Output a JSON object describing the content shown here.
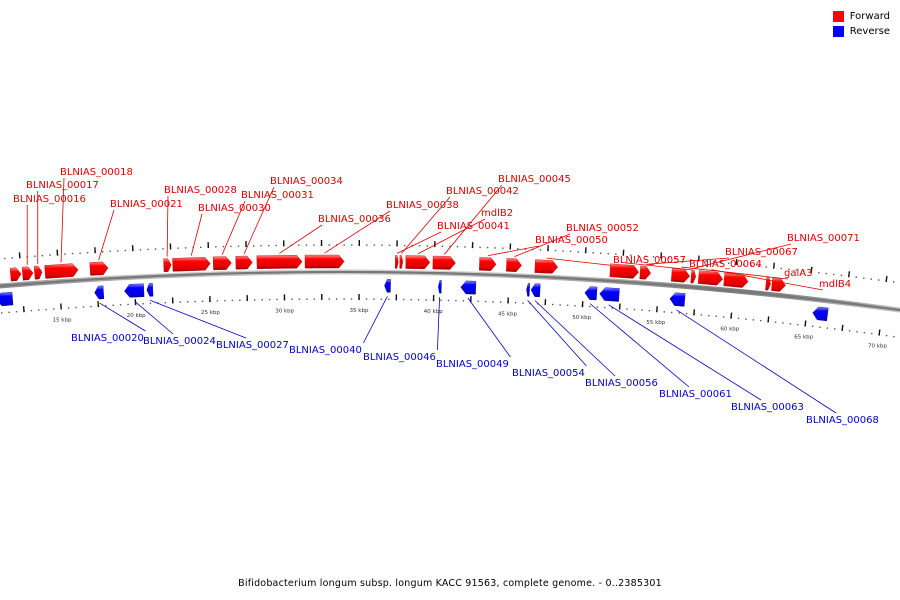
{
  "legend": {
    "items": [
      {
        "label": "Forward",
        "color": "#ff0000"
      },
      {
        "label": "Reverse",
        "color": "#0000ff"
      }
    ]
  },
  "caption": "Bifidobacterium longum subsp. longum KACC 91563, complete genome. - 0..2385301",
  "colors": {
    "forward": "#ff0000",
    "forward_dark": "#a00000",
    "forward_light": "#ff8080",
    "reverse": "#0000ff",
    "reverse_dark": "#00009a",
    "reverse_light": "#8080ff",
    "forward_label": "#dd0000",
    "reverse_label": "#0000cc",
    "backbone": "#888888"
  },
  "genome": {
    "visible_range_kbp": [
      10.5,
      71.5
    ],
    "scale_ticks_kbp": [
      15,
      20,
      25,
      30,
      35,
      40,
      45,
      50,
      55,
      60,
      65,
      70
    ],
    "scale_tick_labels": [
      "15 kbp",
      "20 kbp",
      "25 kbp",
      "30 kbp",
      "35 kbp",
      "40 kbp",
      "45 kbp",
      "50 kbp",
      "55 kbp",
      "60 kbp",
      "65 kbp",
      "70 kbp"
    ]
  },
  "forward_genes": [
    {
      "start": 10.3,
      "end": 10.6,
      "label": ""
    },
    {
      "start": 11.8,
      "end": 12.5,
      "label": ""
    },
    {
      "start": 12.6,
      "end": 13.3,
      "label": "BLNIAS_00016"
    },
    {
      "start": 13.4,
      "end": 13.9,
      "label": "BLNIAS_00017"
    },
    {
      "start": 14.1,
      "end": 16.3,
      "label": "BLNIAS_00018"
    },
    {
      "start": 17.1,
      "end": 18.3,
      "label": "BLNIAS_00021"
    },
    {
      "start": 22.0,
      "end": 22.5,
      "label": "BLNIAS_00028"
    },
    {
      "start": 22.6,
      "end": 25.1,
      "label": "BLNIAS_00030"
    },
    {
      "start": 25.3,
      "end": 26.5,
      "label": "BLNIAS_00031"
    },
    {
      "start": 26.8,
      "end": 27.9,
      "label": "BLNIAS_00034"
    },
    {
      "start": 28.2,
      "end": 31.2,
      "label": "BLNIAS_00036"
    },
    {
      "start": 31.4,
      "end": 34.0,
      "label": "BLNIAS_00038"
    },
    {
      "start": 37.4,
      "end": 37.6,
      "label": "BLNIAS_00041"
    },
    {
      "start": 37.7,
      "end": 37.9,
      "label": "BLNIAS_00042"
    },
    {
      "start": 38.1,
      "end": 39.7,
      "label": "mdlB2"
    },
    {
      "start": 39.9,
      "end": 41.4,
      "label": "BLNIAS_00045"
    },
    {
      "start": 43.0,
      "end": 44.1,
      "label": "BLNIAS_00050"
    },
    {
      "start": 44.8,
      "end": 45.8,
      "label": "BLNIAS_00052"
    },
    {
      "start": 46.7,
      "end": 48.2,
      "label": "BLNIAS_00057"
    },
    {
      "start": 51.7,
      "end": 53.6,
      "label": "BLNIAS_00064"
    },
    {
      "start": 53.7,
      "end": 54.4,
      "label": "BLNIAS_00067"
    },
    {
      "start": 55.8,
      "end": 57.0,
      "label": "galA3"
    },
    {
      "start": 57.1,
      "end": 57.4,
      "label": "BLNIAS_00071"
    },
    {
      "start": 57.6,
      "end": 59.2,
      "label": "mdlB4"
    },
    {
      "start": 59.3,
      "end": 60.9,
      "label": ""
    },
    {
      "start": 62.1,
      "end": 62.4,
      "label": ""
    },
    {
      "start": 62.5,
      "end": 63.4,
      "label": ""
    }
  ],
  "reverse_genes": [
    {
      "start": 10.7,
      "end": 11.8,
      "label": ""
    },
    {
      "start": 17.3,
      "end": 17.9,
      "label": "BLNIAS_00020"
    },
    {
      "start": 19.3,
      "end": 20.6,
      "label": "BLNIAS_00024"
    },
    {
      "start": 20.8,
      "end": 21.2,
      "label": "BLNIAS_00027"
    },
    {
      "start": 36.7,
      "end": 37.1,
      "label": "BLNIAS_00040"
    },
    {
      "start": 40.3,
      "end": 40.5,
      "label": "BLNIAS_00046"
    },
    {
      "start": 41.8,
      "end": 42.8,
      "label": "BLNIAS_00049"
    },
    {
      "start": 46.2,
      "end": 46.4,
      "label": "BLNIAS_00054"
    },
    {
      "start": 46.5,
      "end": 47.1,
      "label": "BLNIAS_00056"
    },
    {
      "start": 50.1,
      "end": 50.9,
      "label": "BLNIAS_00061"
    },
    {
      "start": 51.1,
      "end": 52.4,
      "label": "BLNIAS_00063"
    },
    {
      "start": 55.8,
      "end": 56.8,
      "label": "BLNIAS_00068"
    },
    {
      "start": 65.4,
      "end": 66.4,
      "label": ""
    }
  ],
  "forward_label_positions": {
    "BLNIAS_00016": [
      13,
      202
    ],
    "BLNIAS_00017": [
      26,
      188
    ],
    "BLNIAS_00018": [
      60,
      175
    ],
    "BLNIAS_00021": [
      110,
      207
    ],
    "BLNIAS_00028": [
      164,
      193
    ],
    "BLNIAS_00030": [
      198,
      211
    ],
    "BLNIAS_00031": [
      241,
      198
    ],
    "BLNIAS_00034": [
      270,
      184
    ],
    "BLNIAS_00036": [
      318,
      222
    ],
    "BLNIAS_00038": [
      386,
      208
    ],
    "BLNIAS_00041": [
      437,
      229
    ],
    "BLNIAS_00042": [
      446,
      194
    ],
    "mdlB2": [
      481,
      216
    ],
    "BLNIAS_00045": [
      498,
      182
    ],
    "BLNIAS_00050": [
      535,
      243
    ],
    "BLNIAS_00052": [
      566,
      231
    ],
    "BLNIAS_00057": [
      613,
      263
    ],
    "BLNIAS_00064": [
      689,
      267
    ],
    "BLNIAS_00067": [
      725,
      255
    ],
    "galA3": [
      784,
      276
    ],
    "BLNIAS_00071": [
      787,
      241
    ],
    "mdlB4": [
      819,
      287
    ]
  },
  "reverse_label_positions": {
    "BLNIAS_00020": [
      71,
      341
    ],
    "BLNIAS_00024": [
      143,
      344
    ],
    "BLNIAS_00027": [
      216,
      348
    ],
    "BLNIAS_00040": [
      289,
      353
    ],
    "BLNIAS_00046": [
      363,
      360
    ],
    "BLNIAS_00049": [
      436,
      367
    ],
    "BLNIAS_00054": [
      512,
      376
    ],
    "BLNIAS_00056": [
      585,
      386
    ],
    "BLNIAS_00061": [
      659,
      397
    ],
    "BLNIAS_00063": [
      731,
      410
    ],
    "BLNIAS_00068": [
      806,
      423
    ]
  }
}
